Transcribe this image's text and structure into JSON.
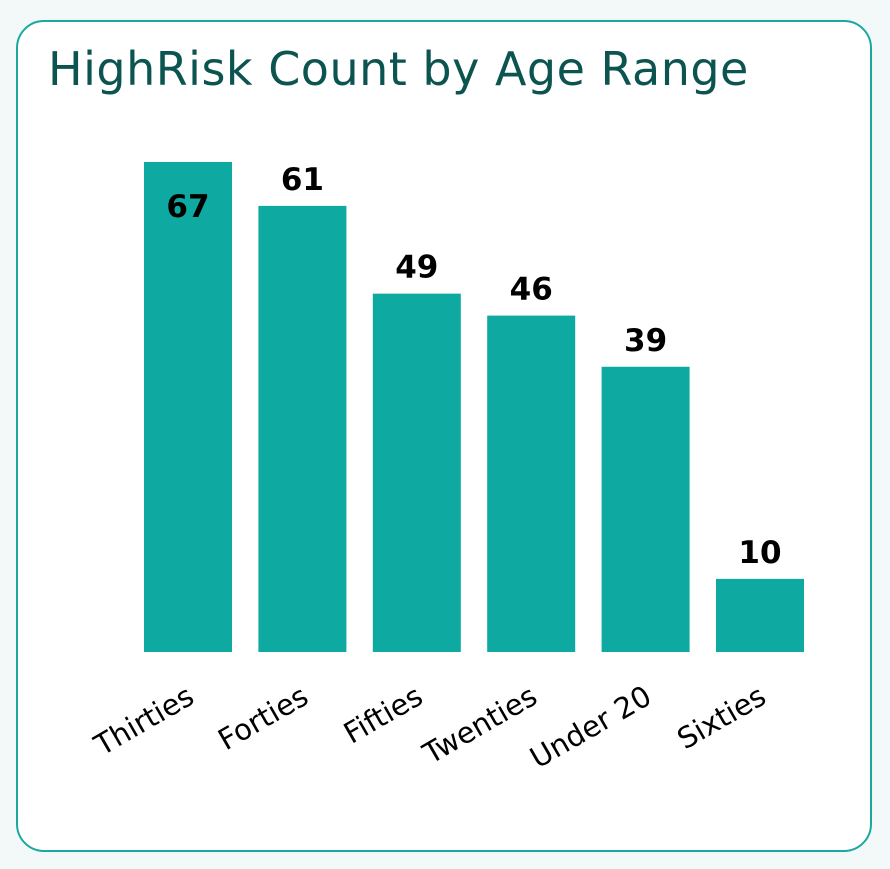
{
  "chart_data": {
    "type": "bar",
    "title": "HighRisk Count by Age Range",
    "xlabel": "",
    "ylabel": "",
    "categories": [
      "Thirties",
      "Forties",
      "Fifties",
      "Twenties",
      "Under 20",
      "Sixties"
    ],
    "values": [
      67,
      61,
      49,
      46,
      39,
      10
    ],
    "data_labels": [
      "67",
      "61",
      "49",
      "46",
      "39",
      "10"
    ],
    "ylim": [
      0,
      67
    ],
    "grid": false,
    "legend": "none",
    "bar_color": "#0eaaa2",
    "title_color": "#0b5450",
    "border_color": "#1aa8a0"
  }
}
